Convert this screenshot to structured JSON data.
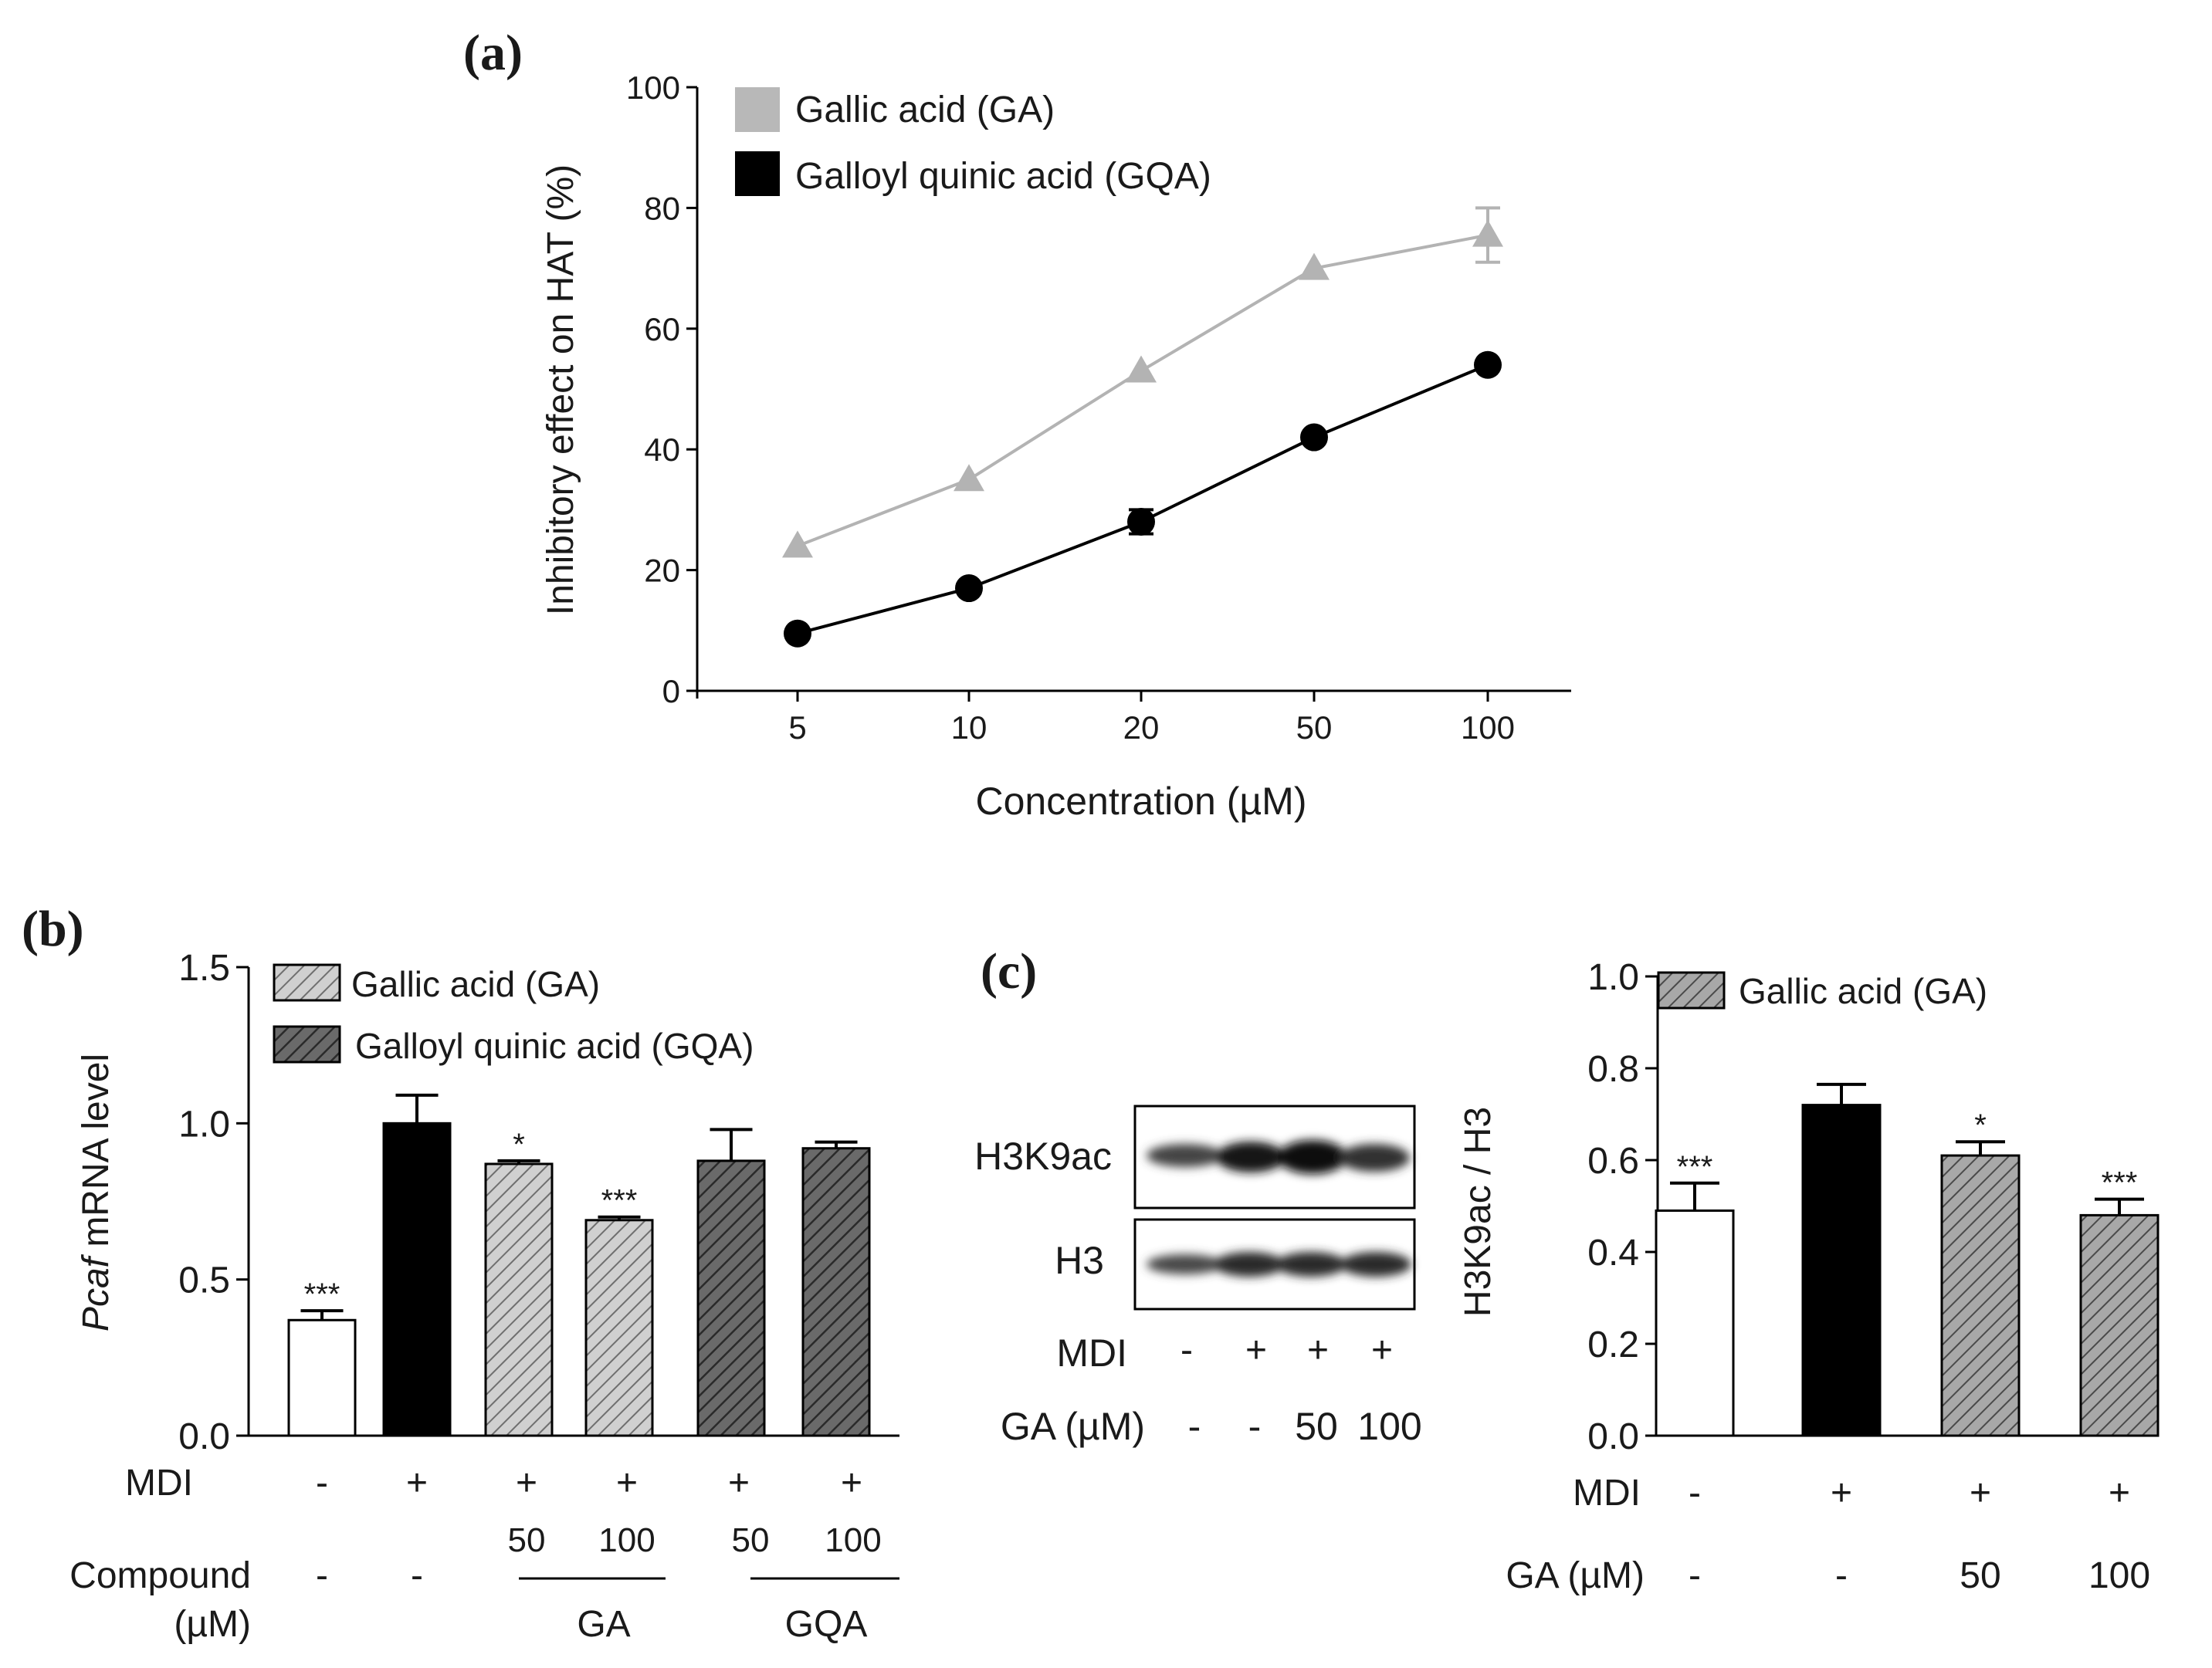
{
  "colors": {
    "ga_line": "#b3b3b3",
    "gqa_line": "#000000",
    "axis": "#000000",
    "ga_bar_fill": "#d0d0d0",
    "gqa_bar_fill": "#6a6a6a",
    "hatch_light": "#6f6f6f",
    "hatch_dark": "#2a2a2a",
    "ga_bar_c_fill": "#a8a8a8"
  },
  "chart_data": [
    {
      "id": "a",
      "panel_label": "(a)",
      "type": "line",
      "xlabel": "Concentration (µM)",
      "ylabel": "Inhibitory effect on HAT (%)",
      "categories": [
        "5",
        "10",
        "20",
        "50",
        "100"
      ],
      "ylim": [
        0,
        100
      ],
      "yticks": [
        "0",
        "20",
        "40",
        "60",
        "80",
        "100"
      ],
      "legend": [
        "Gallic acid (GA)",
        "Galloyl quinic acid (GQA)"
      ],
      "series": [
        {
          "name": "Gallic acid (GA)",
          "marker": "triangle",
          "values": [
            24,
            35,
            53,
            70,
            75.5
          ],
          "errors": [
            0.5,
            0.5,
            0.5,
            0.5,
            4.5
          ]
        },
        {
          "name": "Galloyl quinic acid (GQA)",
          "marker": "circle",
          "values": [
            9.5,
            17,
            28,
            42,
            54
          ],
          "errors": [
            0.5,
            0.5,
            2,
            0.5,
            0.5
          ]
        }
      ]
    },
    {
      "id": "b",
      "panel_label": "(b)",
      "type": "bar",
      "ylabel_italic": "Pcaf",
      "ylabel_rest": " mRNA level",
      "ylim": [
        0,
        1.5
      ],
      "yticks": [
        "0.0",
        "0.5",
        "1.0",
        "1.5"
      ],
      "legend": [
        "Gallic acid (GA)",
        "Galloyl quinic acid (GQA)"
      ],
      "bars": [
        {
          "value": 0.37,
          "error": 0.03,
          "sig": "***",
          "fill": "white"
        },
        {
          "value": 1.0,
          "error": 0.09,
          "sig": "",
          "fill": "black"
        },
        {
          "value": 0.87,
          "error": 0.01,
          "sig": "*",
          "fill": "ga"
        },
        {
          "value": 0.69,
          "error": 0.01,
          "sig": "***",
          "fill": "ga"
        },
        {
          "value": 0.88,
          "error": 0.1,
          "sig": "",
          "fill": "gqa"
        },
        {
          "value": 0.92,
          "error": 0.02,
          "sig": "",
          "fill": "gqa"
        }
      ],
      "row_labels": {
        "mdi": "MDI",
        "compound_line1": "Compound",
        "compound_line2": "(µM)"
      },
      "mdi_values": [
        "-",
        "+",
        "+",
        "+",
        "+",
        "+"
      ],
      "concentrations": [
        "",
        "",
        "50",
        "100",
        "50",
        "100"
      ],
      "compound_values": [
        "-",
        "-"
      ],
      "group_labels": [
        "GA",
        "GQA"
      ]
    },
    {
      "id": "c",
      "panel_label": "(c)",
      "type": "bar",
      "ylabel": "H3K9ac / H3",
      "ylim": [
        0,
        1.0
      ],
      "yticks": [
        "0.0",
        "0.2",
        "0.4",
        "0.6",
        "0.8",
        "1.0"
      ],
      "legend": [
        "Gallic acid (GA)"
      ],
      "bars": [
        {
          "value": 0.49,
          "error": 0.06,
          "sig": "***",
          "fill": "white"
        },
        {
          "value": 0.72,
          "error": 0.045,
          "sig": "",
          "fill": "black"
        },
        {
          "value": 0.61,
          "error": 0.03,
          "sig": "*",
          "fill": "ga"
        },
        {
          "value": 0.48,
          "error": 0.035,
          "sig": "***",
          "fill": "ga"
        }
      ],
      "row_labels": {
        "mdi": "MDI",
        "ga": "GA (µM)"
      },
      "mdi_values": [
        "-",
        "+",
        "+",
        "+"
      ],
      "ga_values": [
        "-",
        "-",
        "50",
        "100"
      ]
    }
  ],
  "blot": {
    "bands": [
      "H3K9ac",
      "H3"
    ],
    "mdi_label": "MDI",
    "ga_label": "GA (µM)",
    "mdi_values": [
      "-",
      "+",
      "+",
      "+"
    ],
    "ga_values": [
      "-",
      "-",
      "50",
      "100"
    ]
  }
}
